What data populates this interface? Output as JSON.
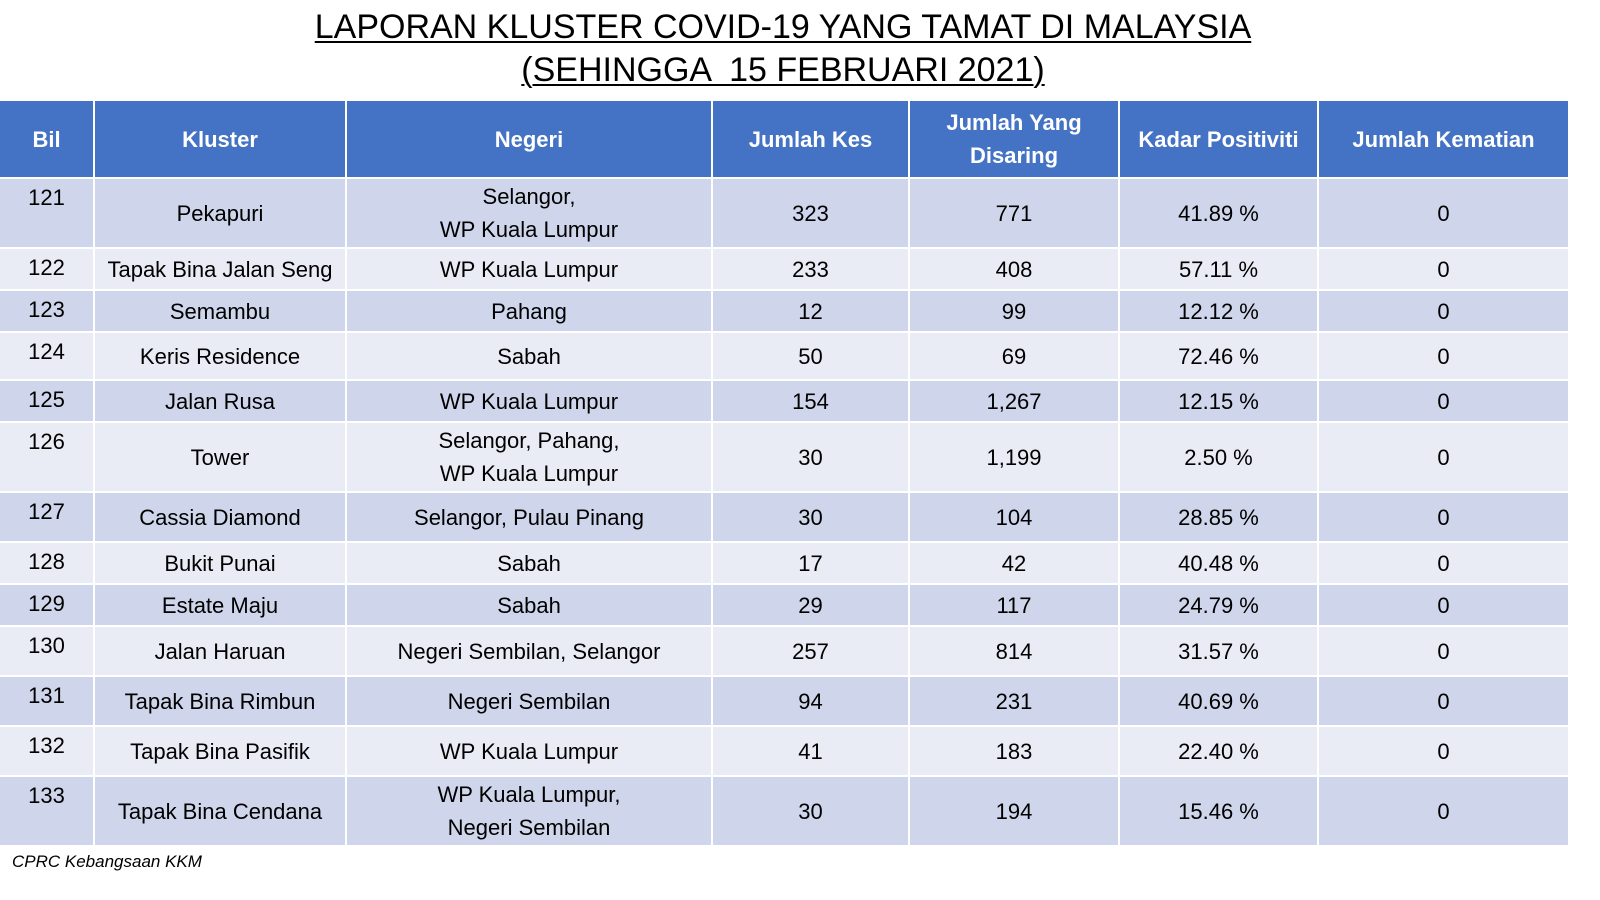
{
  "title": {
    "line1": "LAPORAN KLUSTER COVID-19 YANG TAMAT DI MALAYSIA",
    "line2": "(SEHINGGA  15 FEBRUARI 2021)"
  },
  "table": {
    "headers": [
      "Bil",
      "Kluster",
      "Negeri",
      "Jumlah Kes",
      "Jumlah Yang Disaring",
      "Kadar Positiviti",
      "Jumlah Kematian"
    ],
    "header_colors": {
      "header_bg": "#4472c4",
      "row_dark": "#cfd5ea",
      "row_light": "#e9ebf5"
    },
    "rows": [
      {
        "bil": "121",
        "kluster": "Pekapuri",
        "negeri": [
          "Selangor,",
          "WP Kuala Lumpur"
        ],
        "kes": "323",
        "disaring": "771",
        "positiviti": "41.89 %",
        "kematian": "0"
      },
      {
        "bil": "122",
        "kluster": "Tapak Bina Jalan Seng",
        "negeri": [
          "WP Kuala Lumpur"
        ],
        "kes": "233",
        "disaring": "408",
        "positiviti": "57.11 %",
        "kematian": "0"
      },
      {
        "bil": "123",
        "kluster": "Semambu",
        "negeri": [
          "Pahang"
        ],
        "kes": "12",
        "disaring": "99",
        "positiviti": "12.12 %",
        "kematian": "0"
      },
      {
        "bil": "124",
        "kluster": "Keris Residence",
        "negeri": [
          "Sabah"
        ],
        "kes": "50",
        "disaring": "69",
        "positiviti": "72.46 %",
        "kematian": "0"
      },
      {
        "bil": "125",
        "kluster": "Jalan Rusa",
        "negeri": [
          "WP Kuala Lumpur"
        ],
        "kes": "154",
        "disaring": "1,267",
        "positiviti": "12.15 %",
        "kematian": "0"
      },
      {
        "bil": "126",
        "kluster": "Tower",
        "negeri": [
          "Selangor, Pahang,",
          "WP Kuala Lumpur"
        ],
        "kes": "30",
        "disaring": "1,199",
        "positiviti": "2.50 %",
        "kematian": "0"
      },
      {
        "bil": "127",
        "kluster": "Cassia Diamond",
        "negeri": [
          "Selangor, Pulau Pinang"
        ],
        "kes": "30",
        "disaring": "104",
        "positiviti": "28.85 %",
        "kematian": "0"
      },
      {
        "bil": "128",
        "kluster": "Bukit Punai",
        "negeri": [
          "Sabah"
        ],
        "kes": "17",
        "disaring": "42",
        "positiviti": "40.48 %",
        "kematian": "0"
      },
      {
        "bil": "129",
        "kluster": "Estate Maju",
        "negeri": [
          "Sabah"
        ],
        "kes": "29",
        "disaring": "117",
        "positiviti": "24.79 %",
        "kematian": "0"
      },
      {
        "bil": "130",
        "kluster": "Jalan Haruan",
        "negeri": [
          "Negeri Sembilan, Selangor"
        ],
        "kes": "257",
        "disaring": "814",
        "positiviti": "31.57 %",
        "kematian": "0"
      },
      {
        "bil": "131",
        "kluster": "Tapak Bina Rimbun",
        "negeri": [
          "Negeri Sembilan"
        ],
        "kes": "94",
        "disaring": "231",
        "positiviti": "40.69 %",
        "kematian": "0"
      },
      {
        "bil": "132",
        "kluster": "Tapak Bina Pasifik",
        "negeri": [
          "WP Kuala Lumpur"
        ],
        "kes": "41",
        "disaring": "183",
        "positiviti": "22.40 %",
        "kematian": "0"
      },
      {
        "bil": "133",
        "kluster": "Tapak Bina Cendana",
        "negeri": [
          "WP Kuala Lumpur,",
          "Negeri Sembilan"
        ],
        "kes": "30",
        "disaring": "194",
        "positiviti": "15.46 %",
        "kematian": "0"
      }
    ]
  },
  "footer": {
    "source": "CPRC Kebangsaan KKM"
  }
}
